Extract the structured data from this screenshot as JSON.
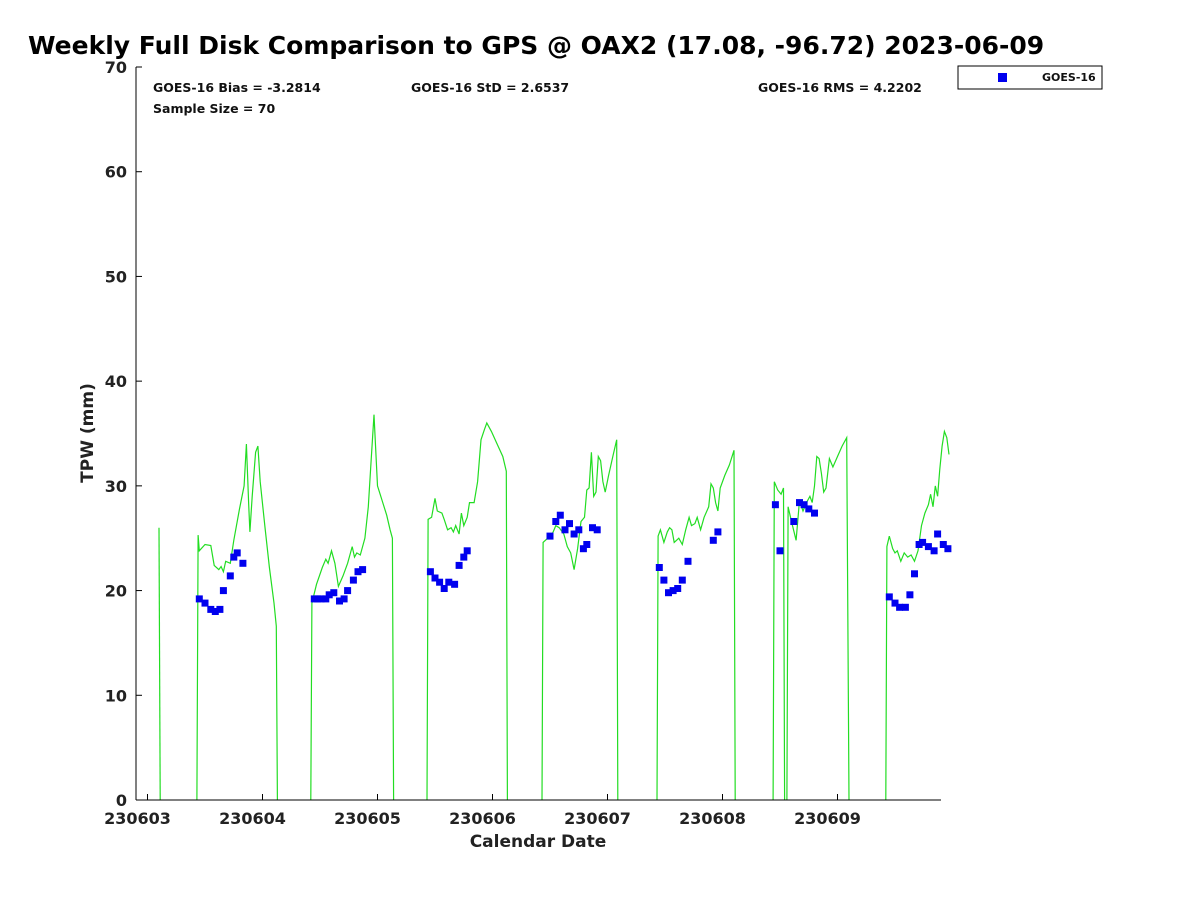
{
  "chart_data": {
    "type": "scatter",
    "title": "Weekly Full Disk Comparison to GPS @ OAX2 (17.08, -96.72) 2023-06-09",
    "xlabel": "Calendar Date",
    "ylabel": "TPW (mm)",
    "ylim": [
      0,
      70
    ],
    "xlim": [
      0,
      7.0
    ],
    "x_tick_labels": [
      "230603",
      "230604",
      "230605",
      "230606",
      "230607",
      "230608",
      "230609"
    ],
    "y_ticks": [
      0,
      10,
      20,
      30,
      40,
      50,
      60,
      70
    ],
    "legend_position": "top-right, outside plot",
    "grid": false,
    "stats": {
      "bias": "GOES-16 Bias = -3.2814",
      "std": "GOES-16 StD = 2.6537",
      "rms": "GOES-16 RMS = 4.2202",
      "sample": "Sample Size = 70"
    },
    "series": [
      {
        "name": "GOES-16",
        "kind": "marker",
        "color": "#0000ee",
        "points": [
          [
            0.45,
            19.2
          ],
          [
            0.5,
            18.8
          ],
          [
            0.55,
            18.2
          ],
          [
            0.59,
            18.0
          ],
          [
            0.63,
            18.2
          ],
          [
            0.66,
            20.0
          ],
          [
            0.72,
            21.4
          ],
          [
            0.75,
            23.2
          ],
          [
            0.78,
            23.6
          ],
          [
            0.83,
            22.6
          ],
          [
            1.45,
            19.2
          ],
          [
            1.48,
            19.2
          ],
          [
            1.51,
            19.2
          ],
          [
            1.55,
            19.2
          ],
          [
            1.58,
            19.6
          ],
          [
            1.62,
            19.8
          ],
          [
            1.67,
            19.0
          ],
          [
            1.71,
            19.2
          ],
          [
            1.74,
            20.0
          ],
          [
            1.79,
            21.0
          ],
          [
            1.83,
            21.8
          ],
          [
            1.87,
            22.0
          ],
          [
            2.46,
            21.8
          ],
          [
            2.5,
            21.2
          ],
          [
            2.54,
            20.8
          ],
          [
            2.58,
            20.2
          ],
          [
            2.62,
            20.8
          ],
          [
            2.67,
            20.6
          ],
          [
            2.71,
            22.4
          ],
          [
            2.75,
            23.2
          ],
          [
            2.78,
            23.8
          ],
          [
            3.5,
            25.2
          ],
          [
            3.55,
            26.6
          ],
          [
            3.59,
            27.2
          ],
          [
            3.63,
            25.8
          ],
          [
            3.67,
            26.4
          ],
          [
            3.71,
            25.4
          ],
          [
            3.75,
            25.8
          ],
          [
            3.79,
            24.0
          ],
          [
            3.82,
            24.4
          ],
          [
            3.87,
            26.0
          ],
          [
            3.91,
            25.8
          ],
          [
            4.45,
            22.2
          ],
          [
            4.49,
            21.0
          ],
          [
            4.53,
            19.8
          ],
          [
            4.57,
            20.0
          ],
          [
            4.61,
            20.2
          ],
          [
            4.65,
            21.0
          ],
          [
            4.7,
            22.8
          ],
          [
            4.92,
            24.8
          ],
          [
            4.96,
            25.6
          ],
          [
            5.46,
            28.2
          ],
          [
            5.5,
            23.8
          ],
          [
            5.62,
            26.6
          ],
          [
            5.67,
            28.4
          ],
          [
            5.71,
            28.2
          ],
          [
            5.75,
            27.8
          ],
          [
            5.8,
            27.4
          ],
          [
            6.45,
            19.4
          ],
          [
            6.5,
            18.8
          ],
          [
            6.54,
            18.4
          ],
          [
            6.59,
            18.4
          ],
          [
            6.63,
            19.6
          ],
          [
            6.67,
            21.6
          ],
          [
            6.71,
            24.4
          ],
          [
            6.74,
            24.6
          ],
          [
            6.79,
            24.2
          ],
          [
            6.84,
            23.8
          ],
          [
            6.87,
            25.4
          ],
          [
            6.92,
            24.4
          ],
          [
            6.96,
            24.0
          ]
        ]
      },
      {
        "name": "",
        "kind": "line",
        "color": "#22dd22",
        "segments": [
          [
            [
              0.1,
              26.0
            ],
            [
              0.11,
              0
            ]
          ],
          [
            [
              0.43,
              0
            ],
            [
              0.44,
              25.3
            ],
            [
              0.45,
              23.8
            ],
            [
              0.5,
              24.4
            ],
            [
              0.55,
              24.3
            ],
            [
              0.58,
              22.4
            ],
            [
              0.62,
              22.0
            ],
            [
              0.64,
              22.3
            ],
            [
              0.66,
              21.8
            ],
            [
              0.68,
              22.8
            ],
            [
              0.72,
              22.6
            ],
            [
              0.75,
              24.8
            ],
            [
              0.8,
              27.8
            ],
            [
              0.84,
              30.0
            ],
            [
              0.86,
              34.0
            ],
            [
              0.88,
              28.2
            ],
            [
              0.89,
              25.6
            ],
            [
              0.91,
              29.0
            ],
            [
              0.94,
              33.2
            ],
            [
              0.96,
              33.8
            ],
            [
              0.98,
              30.4
            ],
            [
              1.02,
              26.2
            ],
            [
              1.06,
              22.2
            ],
            [
              1.1,
              18.8
            ],
            [
              1.12,
              16.6
            ],
            [
              1.13,
              0
            ]
          ],
          [
            [
              1.42,
              0
            ],
            [
              1.43,
              18.8
            ],
            [
              1.47,
              20.6
            ],
            [
              1.52,
              22.2
            ],
            [
              1.55,
              23.0
            ],
            [
              1.57,
              22.6
            ],
            [
              1.6,
              23.8
            ],
            [
              1.63,
              22.6
            ],
            [
              1.66,
              20.4
            ],
            [
              1.7,
              21.4
            ],
            [
              1.74,
              22.6
            ],
            [
              1.78,
              24.2
            ],
            [
              1.8,
              23.2
            ],
            [
              1.82,
              23.6
            ],
            [
              1.85,
              23.4
            ],
            [
              1.89,
              25.0
            ],
            [
              1.92,
              28.0
            ],
            [
              1.94,
              31.6
            ],
            [
              1.97,
              36.8
            ],
            [
              2.0,
              30.0
            ],
            [
              2.04,
              28.6
            ],
            [
              2.08,
              27.2
            ],
            [
              2.11,
              25.8
            ],
            [
              2.13,
              25.0
            ],
            [
              2.14,
              0
            ]
          ],
          [
            [
              2.43,
              0
            ],
            [
              2.44,
              26.8
            ],
            [
              2.47,
              27.0
            ],
            [
              2.5,
              28.8
            ],
            [
              2.52,
              27.6
            ],
            [
              2.56,
              27.4
            ],
            [
              2.58,
              26.8
            ],
            [
              2.61,
              25.8
            ],
            [
              2.64,
              26.0
            ],
            [
              2.66,
              25.6
            ],
            [
              2.68,
              26.2
            ],
            [
              2.71,
              25.4
            ],
            [
              2.73,
              27.4
            ],
            [
              2.75,
              26.2
            ],
            [
              2.78,
              27.0
            ],
            [
              2.8,
              28.4
            ],
            [
              2.84,
              28.4
            ],
            [
              2.87,
              30.4
            ],
            [
              2.9,
              34.4
            ],
            [
              2.93,
              35.4
            ],
            [
              2.95,
              36.0
            ],
            [
              2.99,
              35.2
            ],
            [
              3.04,
              34.0
            ],
            [
              3.09,
              32.8
            ],
            [
              3.12,
              31.4
            ],
            [
              3.13,
              0
            ]
          ],
          [
            [
              3.43,
              0
            ],
            [
              3.44,
              24.6
            ],
            [
              3.48,
              25.0
            ],
            [
              3.52,
              25.4
            ],
            [
              3.55,
              26.2
            ],
            [
              3.58,
              26.0
            ],
            [
              3.62,
              25.4
            ],
            [
              3.65,
              24.2
            ],
            [
              3.68,
              23.6
            ],
            [
              3.71,
              22.0
            ],
            [
              3.74,
              24.0
            ],
            [
              3.77,
              26.6
            ],
            [
              3.8,
              27.0
            ],
            [
              3.82,
              29.6
            ],
            [
              3.84,
              29.8
            ],
            [
              3.86,
              33.2
            ],
            [
              3.88,
              29.0
            ],
            [
              3.9,
              29.4
            ],
            [
              3.92,
              32.8
            ],
            [
              3.94,
              32.4
            ],
            [
              3.96,
              30.4
            ],
            [
              3.98,
              29.4
            ],
            [
              4.01,
              31.0
            ],
            [
              4.05,
              33.0
            ],
            [
              4.08,
              34.4
            ],
            [
              4.09,
              0
            ]
          ],
          [
            [
              4.43,
              0
            ],
            [
              4.44,
              25.2
            ],
            [
              4.46,
              25.8
            ],
            [
              4.49,
              24.6
            ],
            [
              4.52,
              25.6
            ],
            [
              4.54,
              26.0
            ],
            [
              4.56,
              25.8
            ],
            [
              4.58,
              24.6
            ],
            [
              4.62,
              25.0
            ],
            [
              4.65,
              24.4
            ],
            [
              4.68,
              25.8
            ],
            [
              4.71,
              27.0
            ],
            [
              4.73,
              26.2
            ],
            [
              4.76,
              26.4
            ],
            [
              4.78,
              27.0
            ],
            [
              4.81,
              25.8
            ],
            [
              4.84,
              27.0
            ],
            [
              4.88,
              28.0
            ],
            [
              4.9,
              30.2
            ],
            [
              4.92,
              29.8
            ],
            [
              4.94,
              28.4
            ],
            [
              4.96,
              27.6
            ],
            [
              4.98,
              29.8
            ],
            [
              5.02,
              31.0
            ],
            [
              5.06,
              32.0
            ],
            [
              5.1,
              33.4
            ],
            [
              5.11,
              0
            ]
          ],
          [
            [
              5.44,
              0
            ],
            [
              5.45,
              30.4
            ],
            [
              5.48,
              29.6
            ],
            [
              5.51,
              29.2
            ],
            [
              5.53,
              29.8
            ],
            [
              5.54,
              0
            ]
          ],
          [
            [
              5.56,
              0
            ],
            [
              5.57,
              28.0
            ],
            [
              5.6,
              26.6
            ],
            [
              5.64,
              24.8
            ],
            [
              5.67,
              28.6
            ],
            [
              5.7,
              27.6
            ],
            [
              5.73,
              28.4
            ],
            [
              5.76,
              29.0
            ],
            [
              5.78,
              28.4
            ],
            [
              5.8,
              30.0
            ],
            [
              5.82,
              32.8
            ],
            [
              5.84,
              32.6
            ],
            [
              5.86,
              31.2
            ],
            [
              5.88,
              29.4
            ],
            [
              5.9,
              29.8
            ],
            [
              5.93,
              32.6
            ],
            [
              5.96,
              31.8
            ],
            [
              6.0,
              32.8
            ],
            [
              6.04,
              33.8
            ],
            [
              6.08,
              34.6
            ],
            [
              6.1,
              0
            ]
          ],
          [
            [
              6.42,
              0
            ],
            [
              6.43,
              24.2
            ],
            [
              6.45,
              25.2
            ],
            [
              6.48,
              24.0
            ],
            [
              6.5,
              23.6
            ],
            [
              6.52,
              23.8
            ],
            [
              6.55,
              22.8
            ],
            [
              6.58,
              23.6
            ],
            [
              6.61,
              23.2
            ],
            [
              6.64,
              23.4
            ],
            [
              6.67,
              22.8
            ],
            [
              6.7,
              23.8
            ],
            [
              6.73,
              26.2
            ],
            [
              6.76,
              27.4
            ],
            [
              6.79,
              28.2
            ],
            [
              6.81,
              29.2
            ],
            [
              6.83,
              28.0
            ],
            [
              6.85,
              30.0
            ],
            [
              6.87,
              29.0
            ],
            [
              6.89,
              31.6
            ],
            [
              6.91,
              33.8
            ],
            [
              6.93,
              35.2
            ],
            [
              6.95,
              34.6
            ],
            [
              6.97,
              33.0
            ]
          ]
        ]
      }
    ]
  }
}
